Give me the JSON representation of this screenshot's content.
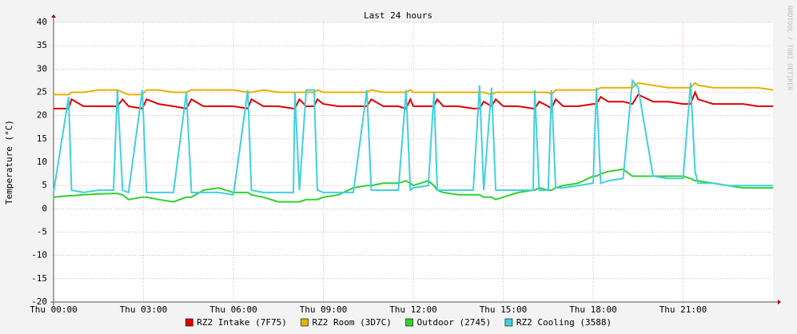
{
  "chart_data": {
    "type": "line",
    "title": "Last 24 hours",
    "y_label": "Temperature (°C)",
    "side_text": "RRDTOOL / TOBI OETIKER",
    "x": [
      0,
      0.5,
      0.6,
      1,
      1.5,
      2,
      2.13,
      2.3,
      2.5,
      2.96,
      3.1,
      3.5,
      4,
      4.43,
      4.6,
      5,
      5.5,
      6,
      6.48,
      6.6,
      7,
      7.5,
      8,
      8.05,
      8.2,
      8.43,
      8.53,
      8.69,
      8.8,
      9,
      9.5,
      10,
      10.45,
      10.6,
      11,
      11.5,
      11.76,
      11.9,
      12,
      12.5,
      12.69,
      12.8,
      13,
      13.5,
      14,
      14.21,
      14.35,
      14.61,
      14.75,
      15,
      15.5,
      16,
      16.05,
      16.2,
      16.5,
      16.61,
      16.75,
      17,
      17.5,
      18,
      18.11,
      18.25,
      18.5,
      19,
      19.31,
      19.5,
      20,
      20.5,
      21,
      21.25,
      21.4,
      21.5,
      22,
      22.5,
      23,
      23.5,
      24
    ],
    "series": [
      {
        "name": "RZ2 Intake (7F75)",
        "color": "#e00000",
        "values": [
          21.5,
          21.5,
          23.5,
          22,
          22,
          22,
          22,
          23.5,
          22,
          21.5,
          23.5,
          22.5,
          22,
          21.5,
          23.5,
          22,
          22,
          22,
          21.5,
          23.5,
          22,
          22,
          21.5,
          21.5,
          23.5,
          22,
          22,
          22,
          23.5,
          22.5,
          22,
          22,
          22,
          23.5,
          22,
          22,
          21.5,
          23.5,
          22,
          22,
          22,
          23.5,
          22,
          22,
          21.5,
          21.5,
          23,
          22,
          23.5,
          22,
          22,
          21.5,
          21.5,
          23,
          22,
          21.5,
          23.5,
          22,
          22,
          22.5,
          22.5,
          24,
          23,
          23,
          22.5,
          24.5,
          23,
          23,
          22.5,
          22.5,
          25,
          23.5,
          22.5,
          22.5,
          22.5,
          22,
          22
        ]
      },
      {
        "name": "RZ2 Room (3D7C)",
        "color": "#e8b000",
        "values": [
          24.5,
          24.5,
          25,
          25,
          25.5,
          25.5,
          25.5,
          25,
          24.5,
          24.5,
          25.5,
          25.5,
          25,
          25,
          25.5,
          25.5,
          25.5,
          25.5,
          25,
          25,
          25.5,
          25,
          25,
          25,
          25,
          25,
          25,
          25,
          25.5,
          25,
          25,
          25,
          25,
          25.5,
          25,
          25,
          25,
          25.5,
          25,
          25,
          25,
          25,
          25,
          25,
          25,
          25,
          25,
          24.5,
          25,
          25,
          25,
          25,
          25,
          25,
          25,
          24.5,
          25.5,
          25.5,
          25.5,
          25.5,
          25.5,
          26,
          26,
          26,
          26,
          27,
          26.5,
          26,
          26,
          26,
          27,
          26.5,
          26,
          26,
          26,
          26,
          25.5
        ]
      },
      {
        "name": "Outdoor (2745)",
        "color": "#30d030",
        "values": [
          2.5,
          2.8,
          2.8,
          3,
          3.2,
          3.3,
          3.3,
          3,
          2,
          2.5,
          2.5,
          2,
          1.5,
          2.5,
          2.5,
          4,
          4.5,
          3.5,
          3.5,
          3,
          2.5,
          1.5,
          1.5,
          1.5,
          1.5,
          2,
          2,
          2,
          2,
          2.5,
          3,
          4.5,
          5,
          5,
          5.5,
          5.5,
          6,
          5.5,
          5,
          6,
          5,
          4,
          3.5,
          3,
          3,
          3,
          2.5,
          2.5,
          2,
          2.5,
          3.5,
          4,
          4,
          4.5,
          4,
          4,
          4.5,
          5,
          5.5,
          7,
          7,
          7.5,
          8,
          8.5,
          7,
          7,
          7,
          7,
          7,
          6.5,
          6,
          6,
          5.5,
          5,
          4.5,
          4.5,
          4.5
        ]
      },
      {
        "name": "RZ2 Cooling (3588)",
        "color": "#40d0e0",
        "values": [
          3.5,
          24,
          4,
          3.5,
          4,
          4,
          25.5,
          4,
          3.5,
          25.5,
          3.5,
          3.5,
          3.5,
          25,
          3.5,
          3.5,
          3.5,
          3,
          25.5,
          4,
          3.5,
          3.5,
          3.5,
          25,
          4,
          25.5,
          25.5,
          25.5,
          4,
          3.5,
          3.5,
          3.5,
          25.5,
          4,
          4,
          4,
          25.5,
          4,
          4.5,
          5,
          25,
          4,
          4,
          4,
          4,
          26.5,
          4,
          26,
          4,
          4,
          4,
          4,
          25.5,
          4,
          4,
          25.5,
          4.5,
          4.5,
          5,
          5.5,
          26,
          5.5,
          6,
          6.5,
          27.5,
          26,
          7,
          6.5,
          6.5,
          27,
          8,
          5.5,
          5.5,
          5,
          5,
          5,
          5
        ]
      }
    ],
    "xlim": [
      0,
      24
    ],
    "xticks": [
      {
        "value": 0,
        "label": "Thu 00:00"
      },
      {
        "value": 3,
        "label": "Thu 03:00"
      },
      {
        "value": 6,
        "label": "Thu 06:00"
      },
      {
        "value": 9,
        "label": "Thu 09:00"
      },
      {
        "value": 12,
        "label": "Thu 12:00"
      },
      {
        "value": 15,
        "label": "Thu 15:00"
      },
      {
        "value": 18,
        "label": "Thu 18:00"
      },
      {
        "value": 21,
        "label": "Thu 21:00"
      }
    ],
    "ylim": [
      -20,
      40
    ],
    "yticks": [
      -20,
      -15,
      -10,
      -5,
      0,
      5,
      10,
      15,
      20,
      25,
      30,
      35,
      40
    ],
    "grid": true
  }
}
